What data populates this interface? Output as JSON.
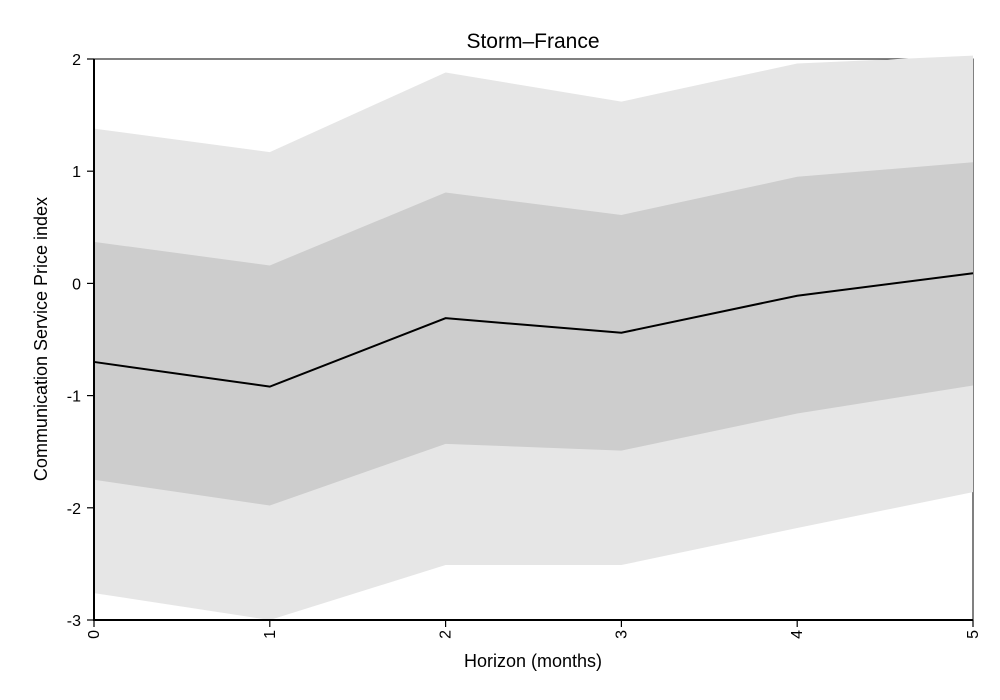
{
  "chart_data": {
    "type": "area",
    "title": "Storm–France",
    "xlabel": "Horizon (months)",
    "ylabel": "Communication Service Price index",
    "x": [
      0,
      1,
      2,
      3,
      4,
      5
    ],
    "xlim": [
      0,
      5
    ],
    "ylim": [
      -3,
      2
    ],
    "yticks": [
      -3,
      -2,
      -1,
      0,
      1,
      2
    ],
    "xticks": [
      0,
      1,
      2,
      3,
      4,
      5
    ],
    "grid": false,
    "series": [
      {
        "values": [
          -0.7,
          -0.92,
          -0.31,
          -0.44,
          -0.11,
          0.09
        ]
      }
    ],
    "bands": [
      {
        "lower": [
          -2.76,
          -3.0,
          -2.51,
          -2.51,
          -2.18,
          -1.86
        ],
        "upper": [
          1.38,
          1.17,
          1.88,
          1.62,
          1.96,
          2.03
        ]
      },
      {
        "lower": [
          -1.75,
          -1.98,
          -1.43,
          -1.49,
          -1.16,
          -0.91
        ],
        "upper": [
          0.37,
          0.16,
          0.81,
          0.61,
          0.95,
          1.08
        ]
      }
    ],
    "colors": {
      "outer_band": "#e6e6e6",
      "inner_band": "#cdcdcd",
      "line": "#000000",
      "axis": "#000000"
    }
  }
}
